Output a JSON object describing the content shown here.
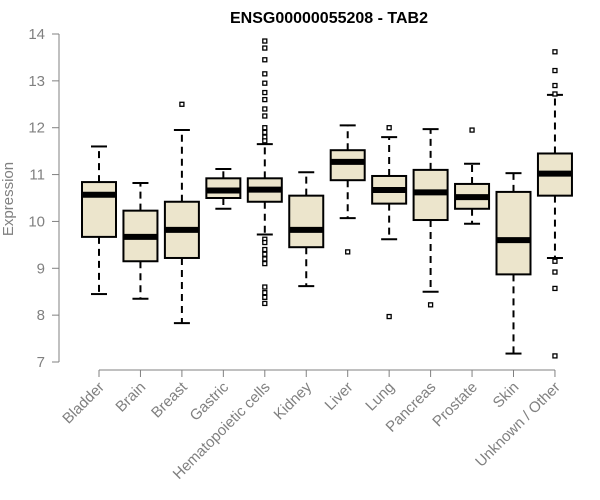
{
  "chart_data": {
    "type": "box",
    "title": "ENSG00000055208 - TAB2",
    "xlabel": "",
    "ylabel": "Expression",
    "ylim": [
      7,
      14
    ],
    "yticks": [
      7,
      8,
      9,
      10,
      11,
      12,
      13,
      14
    ],
    "categories": [
      "Bladder",
      "Brain",
      "Breast",
      "Gastric",
      "Hematopoietic cells",
      "Kidney",
      "Liver",
      "Lung",
      "Pancreas",
      "Prostate",
      "Skin",
      "Unknown / Other"
    ],
    "boxes": [
      {
        "name": "Bladder",
        "whisker_low": 8.45,
        "q1": 9.67,
        "median": 10.57,
        "q3": 10.84,
        "whisker_high": 11.6,
        "outliers": []
      },
      {
        "name": "Brain",
        "whisker_low": 8.35,
        "q1": 9.15,
        "median": 9.67,
        "q3": 10.23,
        "whisker_high": 10.82,
        "outliers": []
      },
      {
        "name": "Breast",
        "whisker_low": 7.83,
        "q1": 9.22,
        "median": 9.82,
        "q3": 10.42,
        "whisker_high": 11.95,
        "outliers": [
          12.5
        ]
      },
      {
        "name": "Gastric",
        "whisker_low": 10.27,
        "q1": 10.5,
        "median": 10.66,
        "q3": 10.92,
        "whisker_high": 11.12,
        "outliers": []
      },
      {
        "name": "Hematopoietic cells",
        "whisker_low": 9.72,
        "q1": 10.42,
        "median": 10.68,
        "q3": 10.92,
        "whisker_high": 11.65,
        "outliers": [
          13.85,
          13.7,
          13.45,
          13.15,
          12.95,
          12.75,
          12.6,
          12.4,
          12.25,
          12.0,
          11.9,
          11.8,
          11.72,
          9.62,
          9.55,
          9.4,
          9.3,
          9.2,
          9.1,
          8.6,
          8.48,
          8.38,
          8.25
        ]
      },
      {
        "name": "Kidney",
        "whisker_low": 8.62,
        "q1": 9.45,
        "median": 9.82,
        "q3": 10.55,
        "whisker_high": 11.05,
        "outliers": []
      },
      {
        "name": "Liver",
        "whisker_low": 10.07,
        "q1": 10.88,
        "median": 11.27,
        "q3": 11.52,
        "whisker_high": 12.05,
        "outliers": [
          9.35
        ]
      },
      {
        "name": "Lung",
        "whisker_low": 9.62,
        "q1": 10.38,
        "median": 10.67,
        "q3": 10.97,
        "whisker_high": 11.8,
        "outliers": [
          12.0,
          7.97
        ]
      },
      {
        "name": "Pancreas",
        "whisker_low": 8.5,
        "q1": 10.03,
        "median": 10.62,
        "q3": 11.1,
        "whisker_high": 11.97,
        "outliers": [
          8.22
        ]
      },
      {
        "name": "Prostate",
        "whisker_low": 9.95,
        "q1": 10.27,
        "median": 10.52,
        "q3": 10.8,
        "whisker_high": 11.23,
        "outliers": [
          11.95
        ]
      },
      {
        "name": "Skin",
        "whisker_low": 7.18,
        "q1": 8.87,
        "median": 9.6,
        "q3": 10.63,
        "whisker_high": 11.03,
        "outliers": []
      },
      {
        "name": "Unknown / Other",
        "whisker_low": 9.22,
        "q1": 10.55,
        "median": 11.02,
        "q3": 11.45,
        "whisker_high": 12.7,
        "outliers": [
          13.62,
          13.22,
          12.9,
          12.72,
          9.15,
          8.92,
          8.57,
          7.13
        ]
      }
    ],
    "colors": {
      "box_fill": "#ece5cc",
      "stroke": "#000000",
      "axis": "#808080",
      "title": "#000000"
    }
  }
}
